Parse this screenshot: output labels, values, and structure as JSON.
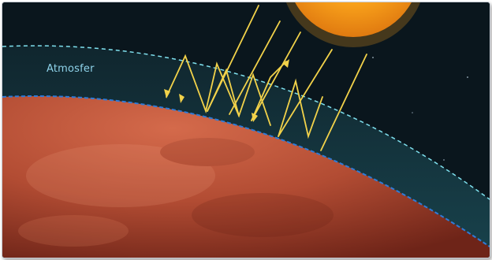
{
  "diagram": {
    "atmosphere_label": "Atmosfer",
    "colors": {
      "space": "#0b1820",
      "atmosphere": "#12303a",
      "planet": "#b8503a",
      "sun": "#f7a11a",
      "rays": "#f2d24a",
      "outer_boundary": "#7fe0ee",
      "surface_boundary": "#2f7bd8"
    },
    "icons": [
      "sun-icon",
      "planet-icon",
      "sunlight-ray-arrows"
    ]
  }
}
